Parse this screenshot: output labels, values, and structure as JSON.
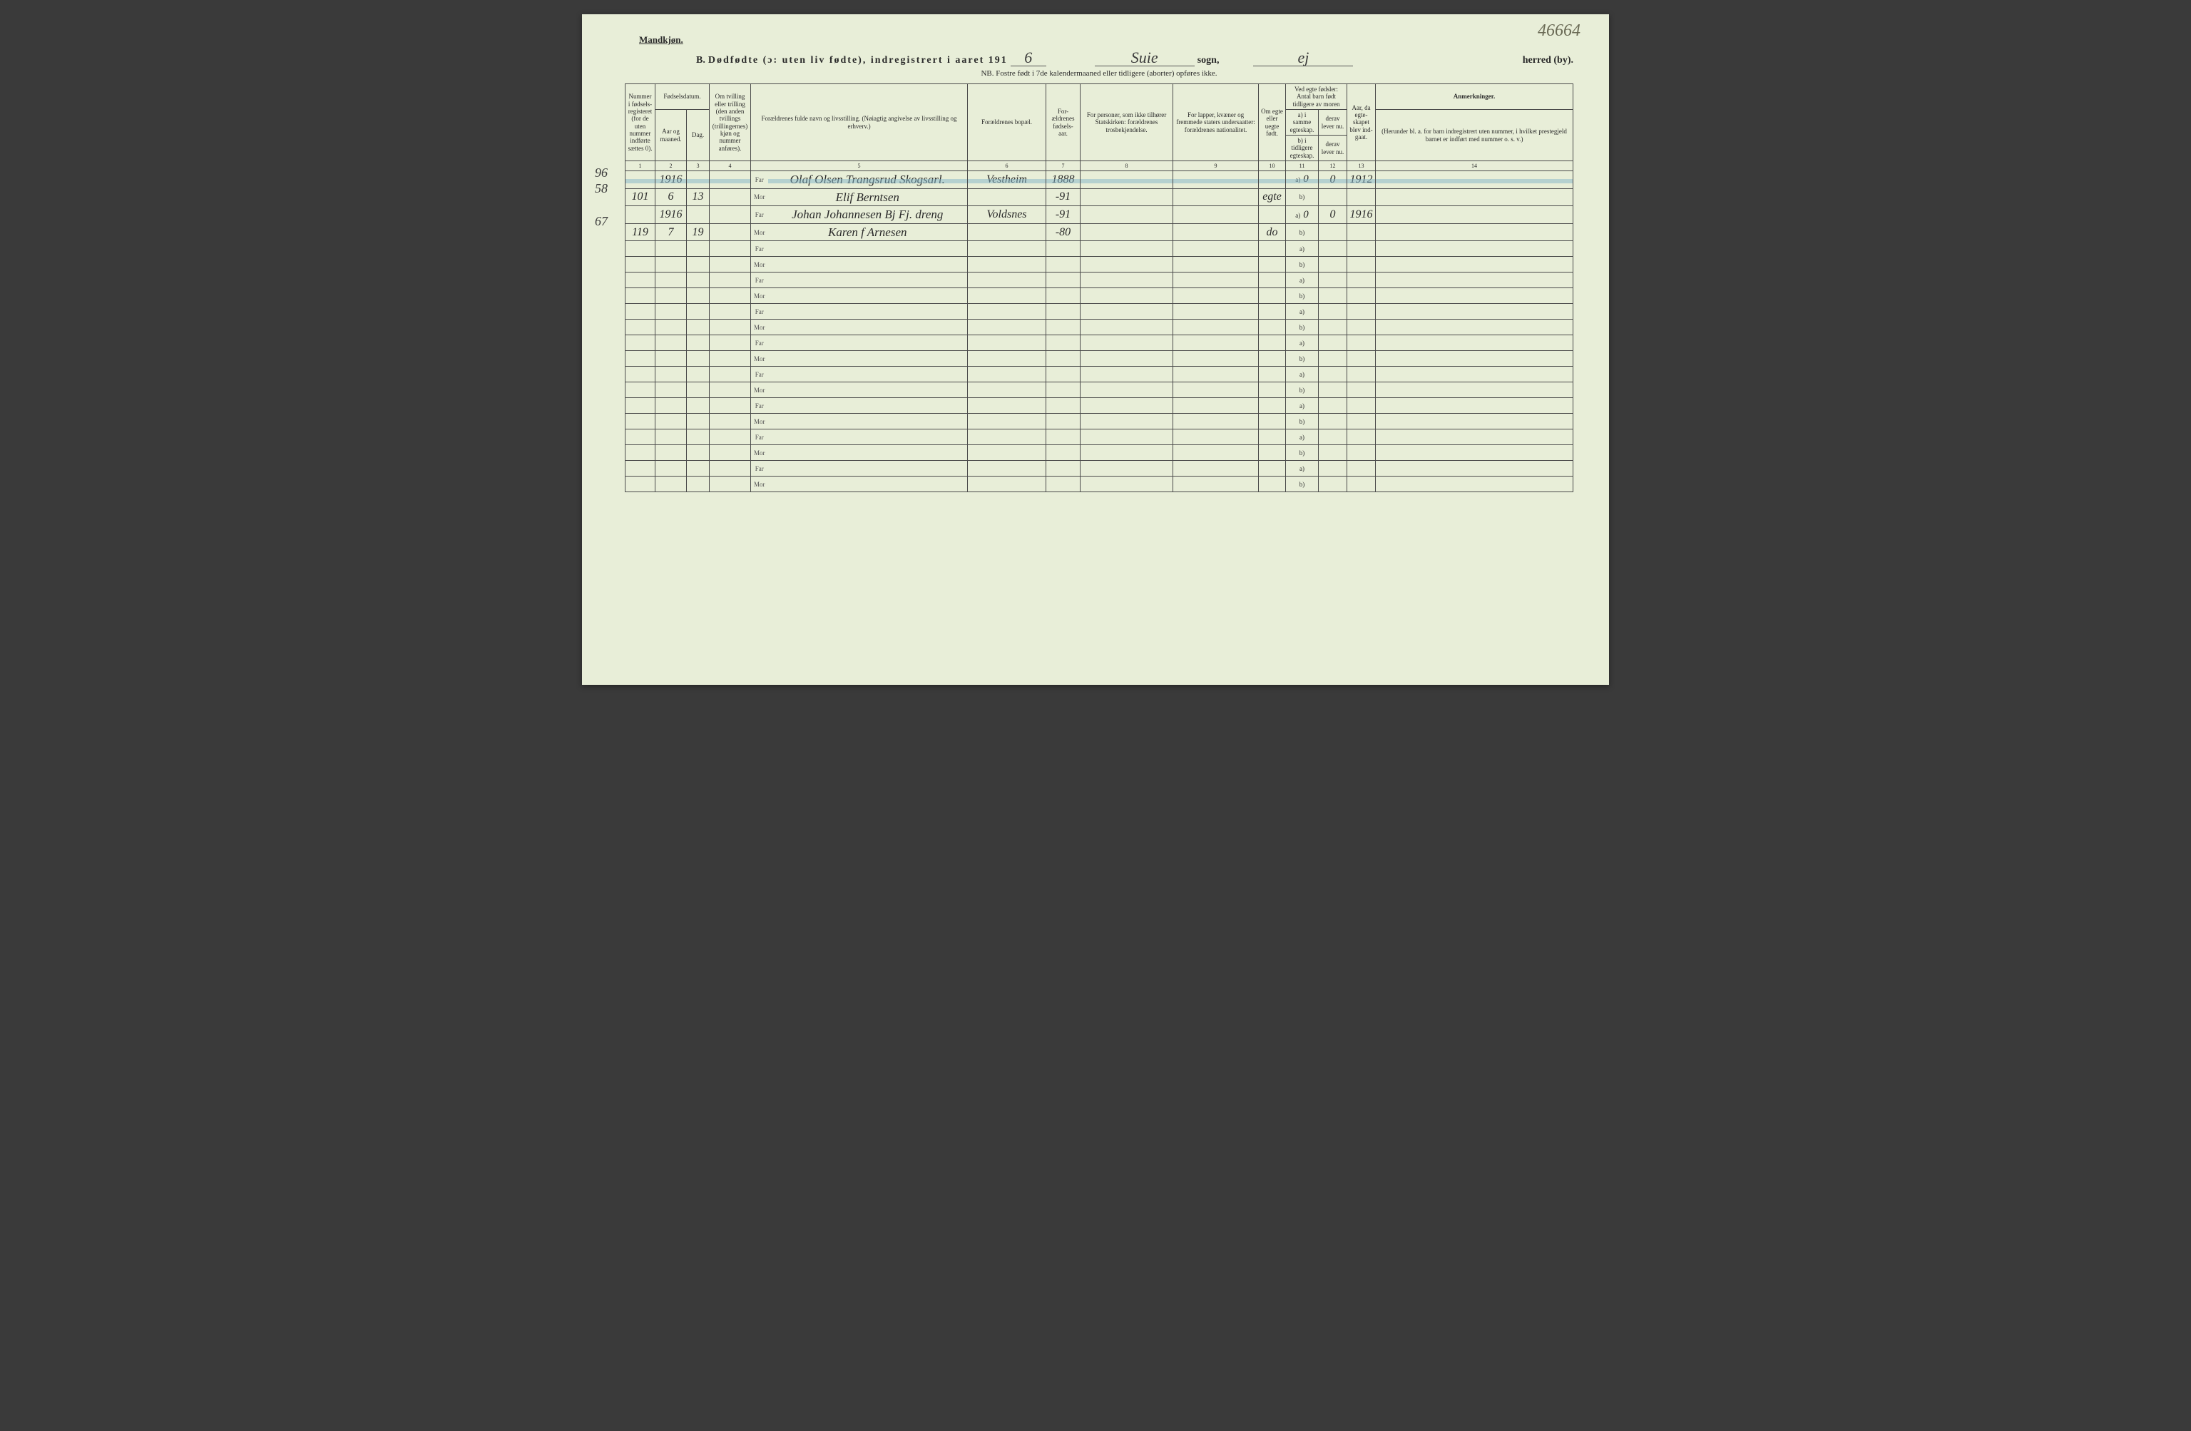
{
  "corner_note": "46664",
  "top_label": "Mandkjøn.",
  "title": {
    "prefix": "B.",
    "main": "Dødfødte (ɔ: uten liv fødte), indregistrert i aaret 191",
    "year_suffix": "6",
    "sogn_value": "Suie",
    "sogn_label": "sogn,",
    "herred_value": "ej",
    "herred_label": "herred (by)."
  },
  "subtitle": "NB.  Fostre født i 7de kalendermaaned eller tidligere (aborter) opføres ikke.",
  "headers": {
    "c1": "Nummer i fødsels-registeret (for de uten nummer indførte sættes 0).",
    "c2a": "Fødselsdatum.",
    "c2": "Aar og maaned.",
    "c3": "Dag.",
    "c4": "Om tvilling eller trilling (den anden tvillings (trillingernes) kjøn og nummer anføres).",
    "c5": "Forældrenes fulde navn og livsstilling. (Nøiagtig angivelse av livsstilling og erhverv.)",
    "c6": "Forældrenes bopæl.",
    "c7": "For-ældrenes fødsels-aar.",
    "c8": "For personer, som ikke tilhører Statskirken: forældrenes trosbekjendelse.",
    "c9": "For lapper, kvæner og fremmede staters undersaatter: forældrenes nationalitet.",
    "c10": "Om egte eller uegte født.",
    "c11top": "Ved egte fødsler: Antal barn født tidligere av moren",
    "c11a": "a) i samme egteskap.",
    "c11b": "b) i tidligere egteskap.",
    "c12a": "derav lever nu.",
    "c12b": "derav lever nu.",
    "c13": "Aar, da egte-skapet blev ind-gaat.",
    "c14": "Anmerkninger.",
    "c14sub": "(Herunder bl. a. for barn indregistrert uten nummer, i hvilket prestegjeld barnet er indført med nummer o. s. v.)"
  },
  "colnums": [
    "1",
    "2",
    "3",
    "4",
    "5",
    "6",
    "7",
    "8",
    "9",
    "10",
    "11",
    "12",
    "13",
    "14"
  ],
  "margin": {
    "r1": "96",
    "r2": "58",
    "r3": "",
    "r4": "67"
  },
  "rows": [
    {
      "num": "",
      "year": "1916",
      "day": "",
      "twin": "",
      "rel": "Far",
      "name": "Olaf Olsen Trangsrud Skogsarl.",
      "bopael": "Vestheim",
      "faar": "1888",
      "c8": "",
      "c9": "",
      "egte": "",
      "ab": "a)",
      "abval": "0",
      "c12": "0",
      "c13": "1912",
      "c14": "",
      "highlight": true
    },
    {
      "num": "101",
      "year": "6",
      "day": "13",
      "twin": "",
      "rel": "Mor",
      "name": "Elif Berntsen",
      "bopael": "",
      "faar": "-91",
      "c8": "",
      "c9": "",
      "egte": "egte",
      "ab": "b)",
      "abval": "",
      "c12": "",
      "c13": "",
      "c14": ""
    },
    {
      "num": "",
      "year": "1916",
      "day": "",
      "twin": "",
      "rel": "Far",
      "name": "Johan Johannesen Bj Fj. dreng",
      "bopael": "Voldsnes",
      "faar": "-91",
      "c8": "",
      "c9": "",
      "egte": "",
      "ab": "a)",
      "abval": "0",
      "c12": "0",
      "c13": "1916",
      "c14": ""
    },
    {
      "num": "119",
      "year": "7",
      "day": "19",
      "twin": "",
      "rel": "Mor",
      "name": "Karen f Arnesen",
      "bopael": "",
      "faar": "-80",
      "c8": "",
      "c9": "",
      "egte": "do",
      "ab": "b)",
      "abval": "",
      "c12": "",
      "c13": "",
      "c14": ""
    }
  ],
  "blank_pairs": 8,
  "far_label": "Far",
  "mor_label": "Mor",
  "a_label": "a)",
  "b_label": "b)",
  "colors": {
    "paper": "#e8eed8",
    "ink": "#2a2a2a",
    "rule": "#4a4a4a",
    "highlight": "rgba(130,180,200,0.5)"
  }
}
